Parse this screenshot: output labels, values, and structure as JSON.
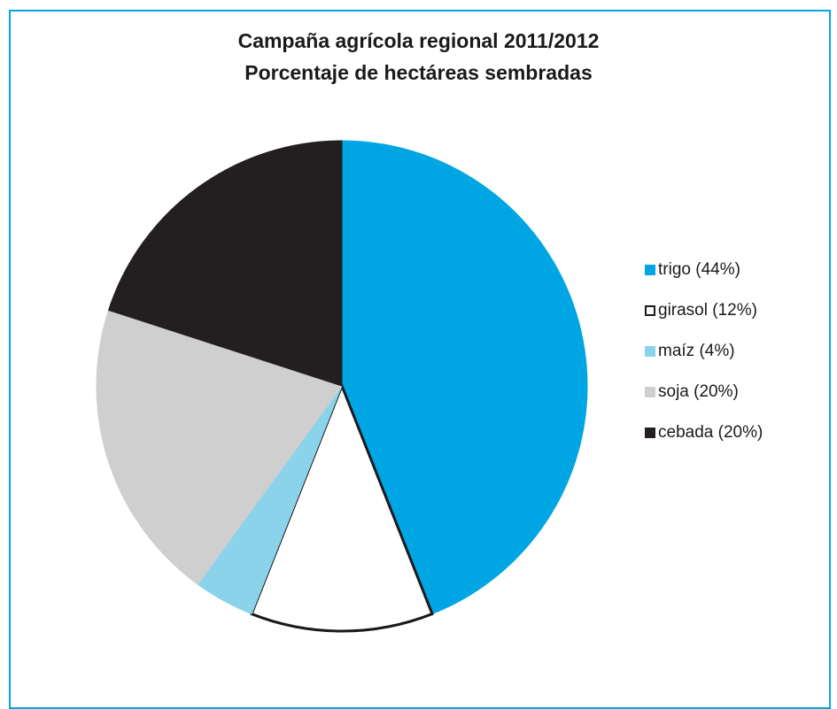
{
  "chart_data": {
    "type": "pie",
    "title": "Campaña agrícola regional 2011/2012",
    "subtitle": "Porcentaje de hectáreas sembradas",
    "slices": [
      {
        "label": "trigo (44%)",
        "value": 44,
        "color": "#00a6e3",
        "stroke": "#00a6e3"
      },
      {
        "label": "girasol (12%)",
        "value": 12,
        "color": "#ffffff",
        "stroke": "#1a1a1a"
      },
      {
        "label": "maíz (4%)",
        "value": 4,
        "color": "#8ad3eb",
        "stroke": "#8ad3eb"
      },
      {
        "label": "soja (20%)",
        "value": 20,
        "color": "#cfcfcf",
        "stroke": "#cfcfcf"
      },
      {
        "label": "cebada (20%)",
        "value": 20,
        "color": "#231f20",
        "stroke": "#231f20"
      }
    ],
    "start_angle_deg": 0,
    "direction": "clockwise",
    "legend_position": "right"
  },
  "frame_color": "#00a6e3"
}
